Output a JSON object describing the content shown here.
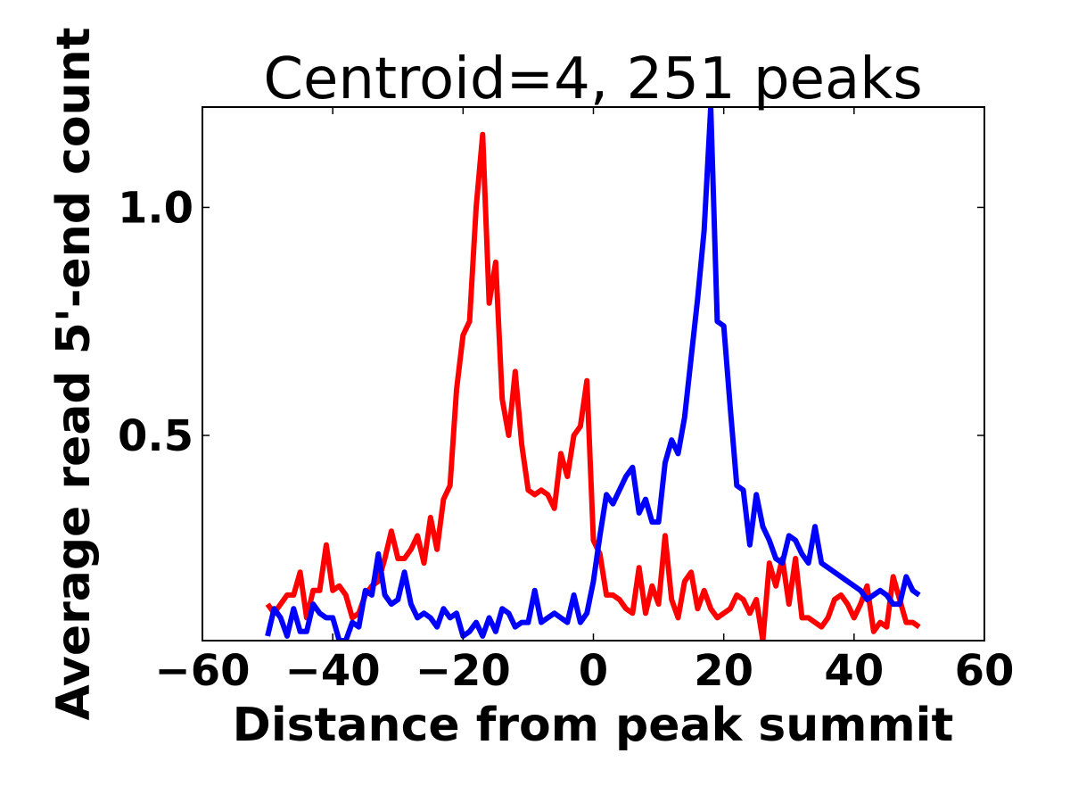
{
  "chart_data": {
    "type": "line",
    "title": "Centroid=4, 251 peaks",
    "xlabel": "Distance from peak summit",
    "ylabel": "Average read 5'-end count",
    "xlim": [
      -60,
      60
    ],
    "ylim": [
      0.05,
      1.22
    ],
    "xticks": [
      -60,
      -40,
      -20,
      0,
      20,
      40,
      60
    ],
    "xtick_labels": [
      "−60",
      "−40",
      "−20",
      "0",
      "20",
      "40",
      "60"
    ],
    "yticks": [
      0.5,
      1.0
    ],
    "ytick_labels": [
      "0.5",
      "1.0"
    ],
    "grid": false,
    "x": [
      -50,
      -49,
      -48,
      -47,
      -46,
      -45,
      -44,
      -43,
      -42,
      -41,
      -40,
      -39,
      -38,
      -37,
      -36,
      -35,
      -34,
      -33,
      -32,
      -31,
      -30,
      -29,
      -28,
      -27,
      -26,
      -25,
      -24,
      -23,
      -22,
      -21,
      -20,
      -19,
      -18,
      -17,
      -16,
      -15,
      -14,
      -13,
      -12,
      -11,
      -10,
      -9,
      -8,
      -7,
      -6,
      -5,
      -4,
      -3,
      -2,
      -1,
      0,
      1,
      2,
      3,
      4,
      5,
      6,
      7,
      8,
      9,
      10,
      11,
      12,
      13,
      14,
      15,
      16,
      17,
      18,
      19,
      20,
      21,
      22,
      23,
      24,
      25,
      26,
      27,
      28,
      29,
      30,
      31,
      32,
      33,
      34,
      35,
      36,
      37,
      38,
      39,
      40,
      41,
      42,
      43,
      44,
      45,
      46,
      47,
      48,
      49,
      50
    ],
    "series": [
      {
        "color": "#ff0000",
        "values": [
          0.13,
          0.11,
          0.13,
          0.15,
          0.15,
          0.2,
          0.1,
          0.16,
          0.16,
          0.26,
          0.16,
          0.17,
          0.15,
          0.1,
          0.11,
          0.15,
          0.17,
          0.18,
          0.23,
          0.29,
          0.23,
          0.23,
          0.25,
          0.28,
          0.22,
          0.32,
          0.25,
          0.36,
          0.39,
          0.6,
          0.72,
          0.75,
          1.0,
          1.16,
          0.79,
          0.88,
          0.58,
          0.5,
          0.64,
          0.48,
          0.38,
          0.37,
          0.38,
          0.37,
          0.34,
          0.46,
          0.41,
          0.5,
          0.52,
          0.62,
          0.27,
          0.24,
          0.15,
          0.15,
          0.14,
          0.12,
          0.11,
          0.21,
          0.11,
          0.17,
          0.13,
          0.28,
          0.14,
          0.1,
          0.18,
          0.2,
          0.12,
          0.16,
          0.12,
          0.1,
          0.11,
          0.12,
          0.15,
          0.14,
          0.11,
          0.14,
          0.05,
          0.22,
          0.17,
          0.23,
          0.13,
          0.23,
          0.1,
          0.1,
          0.09,
          0.08,
          0.1,
          0.14,
          0.15,
          0.13,
          0.1,
          0.13,
          0.17,
          0.07,
          0.09,
          0.08,
          0.19,
          0.14,
          0.09,
          0.09,
          0.08
        ]
      },
      {
        "color": "#0000ff",
        "values": [
          0.06,
          0.12,
          0.1,
          0.06,
          0.12,
          0.07,
          0.07,
          0.13,
          0.11,
          0.1,
          0.1,
          0.05,
          0.05,
          0.09,
          0.08,
          0.16,
          0.15,
          0.24,
          0.15,
          0.13,
          0.14,
          0.2,
          0.13,
          0.1,
          0.11,
          0.1,
          0.08,
          0.12,
          0.1,
          0.11,
          0.06,
          0.07,
          0.09,
          0.06,
          0.1,
          0.07,
          0.12,
          0.11,
          0.08,
          0.09,
          0.09,
          0.16,
          0.09,
          0.1,
          0.11,
          0.1,
          0.09,
          0.15,
          0.09,
          0.11,
          0.18,
          0.28,
          0.37,
          0.35,
          0.38,
          0.41,
          0.43,
          0.33,
          0.36,
          0.31,
          0.31,
          0.44,
          0.49,
          0.46,
          0.54,
          0.67,
          0.8,
          0.95,
          1.22,
          0.75,
          0.74,
          0.56,
          0.39,
          0.38,
          0.26,
          0.37,
          0.3,
          0.27,
          0.23,
          0.22,
          0.28,
          0.27,
          0.24,
          0.22,
          0.3,
          0.22,
          0.21,
          0.2,
          0.19,
          0.18,
          0.17,
          0.16,
          0.14,
          0.15,
          0.16,
          0.15,
          0.13,
          0.13,
          0.19,
          0.16,
          0.15
        ]
      }
    ]
  }
}
